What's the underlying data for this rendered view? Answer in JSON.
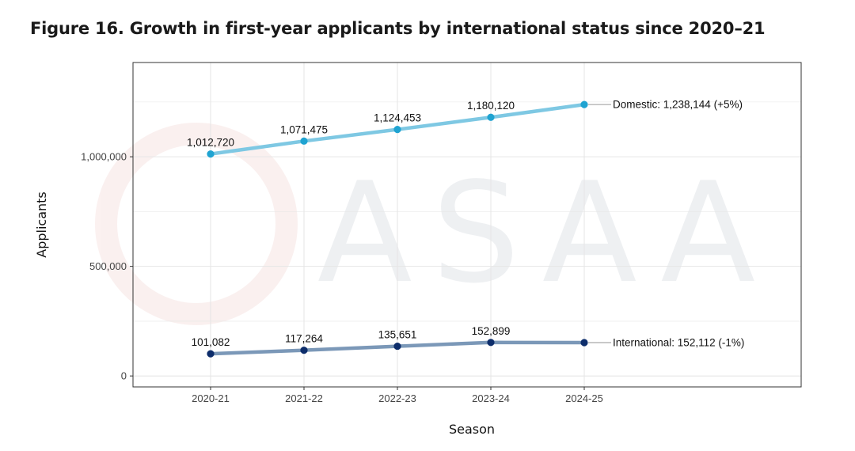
{
  "figure": {
    "title": "Figure 16. Growth in first-year applicants by international status since 2020–21"
  },
  "watermark": {
    "text": "ASAA"
  },
  "colors": {
    "domestic_line": "#7ec8e3",
    "domestic_point": "#1fa3d1",
    "international_line": "#7b98b8",
    "international_point": "#0d2d6b",
    "grid": "#e6e6e6",
    "panel_border": "#333333"
  },
  "chart_data": {
    "type": "line",
    "title": "Figure 16. Growth in first-year applicants by international status since 2020–21",
    "xlabel": "Season",
    "ylabel": "Applicants",
    "categories": [
      "2020-21",
      "2021-22",
      "2022-23",
      "2023-24",
      "2024-25"
    ],
    "ylim": [
      -50000,
      1430000
    ],
    "yticks": [
      0,
      500000,
      1000000
    ],
    "ytick_labels": [
      "0",
      "500,000",
      "1,000,000"
    ],
    "grid": true,
    "series": [
      {
        "name": "Domestic",
        "values": [
          1012720,
          1071475,
          1124453,
          1180120,
          1238144
        ],
        "point_labels": [
          "1,012,720",
          "1,071,475",
          "1,124,453",
          "1,180,120",
          null
        ],
        "end_label": "Domestic: 1,238,144 (+5%)"
      },
      {
        "name": "International",
        "values": [
          101082,
          117264,
          135651,
          152899,
          152112
        ],
        "point_labels": [
          "101,082",
          "117,264",
          "135,651",
          "152,899",
          null
        ],
        "end_label": "International: 152,112 (-1%)"
      }
    ]
  }
}
